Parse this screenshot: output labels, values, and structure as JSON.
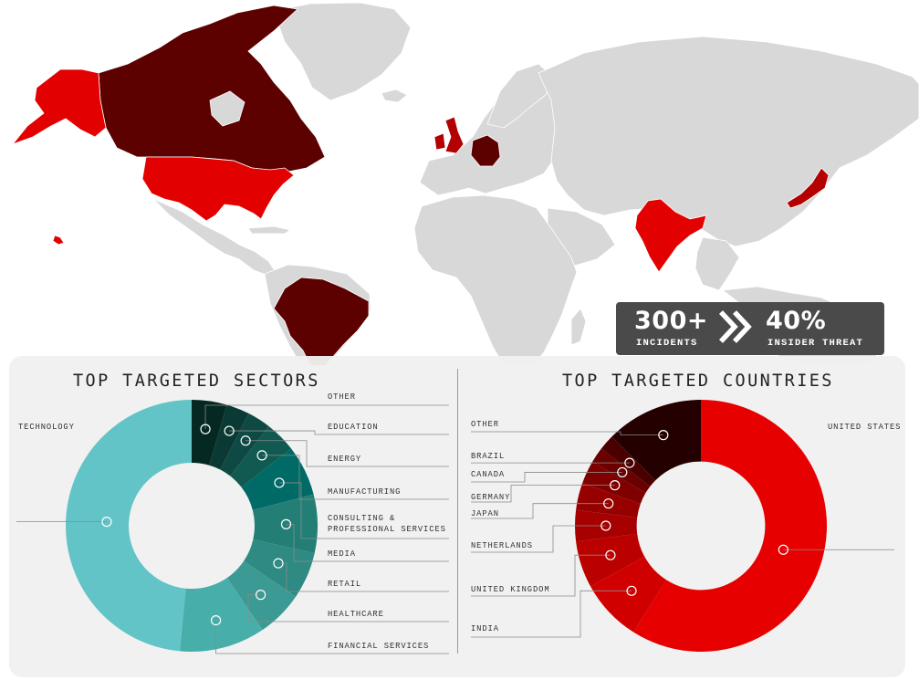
{
  "stats": {
    "incidents_value": "300+",
    "incidents_label": "INCIDENTS",
    "insider_value": "40%",
    "insider_label": "INSIDER THREAT"
  },
  "colors": {
    "map_land": "#d8d8d8",
    "map_border": "#ffffff",
    "tier_high": "#e30000",
    "tier_dark": "#5c0000",
    "tier_mid": "#b30000"
  },
  "map": {
    "highlighted_countries": [
      {
        "name": "Canada",
        "tier": "dark"
      },
      {
        "name": "Alaska (United States)",
        "tier": "high"
      },
      {
        "name": "United States",
        "tier": "high"
      },
      {
        "name": "Brazil",
        "tier": "dark"
      },
      {
        "name": "United Kingdom",
        "tier": "mid"
      },
      {
        "name": "Germany",
        "tier": "dark"
      },
      {
        "name": "India",
        "tier": "high"
      },
      {
        "name": "Japan",
        "tier": "mid"
      }
    ]
  },
  "sectors_panel": {
    "title": "TOP TARGETED SECTORS"
  },
  "countries_panel": {
    "title": "TOP TARGETED COUNTRIES"
  },
  "chart_data": [
    {
      "type": "pie",
      "title": "TOP TARGETED SECTORS",
      "categories": [
        "OTHER",
        "EDUCATION",
        "ENERGY",
        "MANUFACTURING",
        "CONSULTING & PROFESSIONAL SERVICES",
        "MEDIA",
        "RETAIL",
        "HEALTHCARE",
        "FINANCIAL SERVICES",
        "TECHNOLOGY"
      ],
      "label_lines": [
        [
          "OTHER"
        ],
        [
          "EDUCATION"
        ],
        [
          "ENERGY"
        ],
        [
          "MANUFACTURING"
        ],
        [
          "CONSULTING &",
          "PROFESSIONAL SERVICES"
        ],
        [
          "MEDIA"
        ],
        [
          "RETAIL"
        ],
        [
          "HEALTHCARE"
        ],
        [
          "FINANCIAL SERVICES"
        ],
        [
          "TECHNOLOGY"
        ]
      ],
      "values": [
        4.5,
        3,
        3,
        4,
        6.5,
        7.5,
        6,
        6,
        11,
        48.5
      ],
      "colors": [
        "#062823",
        "#0b3a34",
        "#0e4a43",
        "#115a52",
        "#006a66",
        "#237f76",
        "#2e8a82",
        "#3b9a93",
        "#48aeaa",
        "#62c4c7"
      ],
      "hole_ratio": 0.5
    },
    {
      "type": "pie",
      "title": "TOP TARGETED COUNTRIES",
      "categories": [
        "UNITED STATES",
        "INDIA",
        "UNITED KINGDOM",
        "NETHERLANDS",
        "JAPAN",
        "GERMANY",
        "CANADA",
        "BRAZIL",
        "OTHER"
      ],
      "label_lines": [
        [
          "UNITED STATES"
        ],
        [
          "INDIA"
        ],
        [
          "UNITED KINGDOM"
        ],
        [
          "NETHERLANDS"
        ],
        [
          "JAPAN"
        ],
        [
          "GERMANY"
        ],
        [
          "CANADA"
        ],
        [
          "BRAZIL"
        ],
        [
          "OTHER"
        ]
      ],
      "values": [
        59,
        8,
        6,
        4,
        3.5,
        3,
        2,
        2,
        12.5
      ],
      "colors": [
        "#e60000",
        "#d00000",
        "#bb0000",
        "#a60000",
        "#960000",
        "#800000",
        "#6a0000",
        "#4a0000",
        "#240000"
      ],
      "hole_ratio": 0.51
    }
  ]
}
